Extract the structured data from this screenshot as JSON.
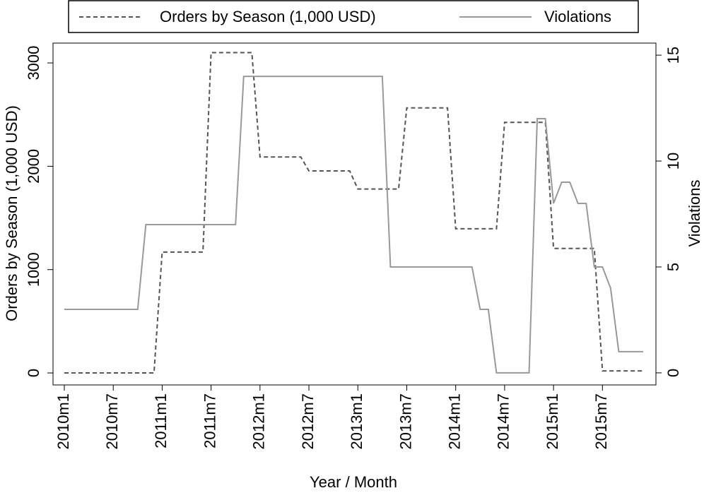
{
  "chart_data": {
    "type": "line",
    "x_label": "Year / Month",
    "y_label": "Orders by Season (1,000 USD)",
    "y2_label": "Violations",
    "legend": "top",
    "categories": [
      "2010m1",
      null,
      null,
      null,
      null,
      null,
      "2010m7",
      null,
      null,
      null,
      null,
      null,
      "2011m1",
      null,
      null,
      null,
      null,
      null,
      "2011m7",
      null,
      null,
      null,
      null,
      null,
      "2012m1",
      null,
      null,
      null,
      null,
      null,
      "2012m7",
      null,
      null,
      null,
      null,
      null,
      "2013m1",
      null,
      null,
      null,
      null,
      null,
      "2013m7",
      null,
      null,
      null,
      null,
      null,
      "2014m1",
      null,
      null,
      null,
      null,
      null,
      "2014m7",
      null,
      null,
      null,
      null,
      null,
      "2015m1",
      null,
      null,
      null,
      null,
      null,
      "2015m7",
      null,
      null,
      null,
      null,
      null
    ],
    "series": [
      {
        "name": "Orders by Season (1,000 USD)",
        "color": "#555555",
        "dash": true,
        "values": [
          0,
          0,
          0,
          0,
          0,
          0,
          0,
          0,
          0,
          0,
          0,
          0,
          1170,
          1170,
          1170,
          1170,
          1170,
          1170,
          3100,
          3100,
          3100,
          3100,
          3100,
          3100,
          2090,
          2090,
          2090,
          2090,
          2090,
          2090,
          1955,
          1955,
          1955,
          1955,
          1955,
          1955,
          1780,
          1780,
          1780,
          1780,
          1780,
          1780,
          2565,
          2565,
          2565,
          2565,
          2565,
          2565,
          1395,
          1395,
          1395,
          1395,
          1395,
          1395,
          2425,
          2425,
          2425,
          2425,
          2425,
          2425,
          1205,
          1205,
          1205,
          1205,
          1205,
          1205,
          20,
          20,
          20,
          20,
          20,
          20
        ]
      },
      {
        "name": "Violations",
        "color": "#999999",
        "dash": false,
        "axis": "y2",
        "values": [
          3,
          3,
          3,
          3,
          3,
          3,
          3,
          3,
          3,
          3,
          7,
          7,
          7,
          7,
          7,
          7,
          7,
          7,
          7,
          7,
          7,
          7,
          14,
          14,
          14,
          14,
          14,
          14,
          14,
          14,
          14,
          14,
          14,
          14,
          14,
          14,
          14,
          14,
          14,
          14,
          5,
          5,
          5,
          5,
          5,
          5,
          5,
          5,
          5,
          5,
          5,
          3,
          3,
          0,
          0,
          0,
          0,
          0,
          12,
          12,
          8,
          9,
          9,
          8,
          8,
          5,
          5,
          4,
          1,
          1,
          1,
          1
        ]
      }
    ],
    "ylim": [
      -116,
      3192
    ],
    "yticks": [
      0,
      1000,
      2000,
      3000
    ],
    "y2lim": [
      -0.57,
      15.57
    ],
    "y2ticks": [
      0,
      5,
      10,
      15
    ]
  }
}
